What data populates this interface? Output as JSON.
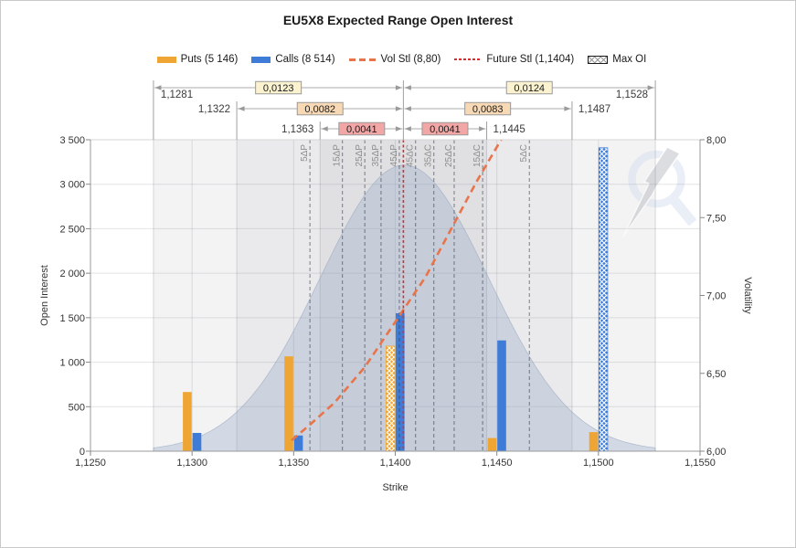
{
  "window": {
    "background": "#ffffff",
    "border_color": "#c9c9c9"
  },
  "header": {
    "title": "EU5X8 Expected Range Open Interest"
  },
  "legend": {
    "items": [
      {
        "swatch": "rect",
        "color": "#EFA533",
        "label": "Puts (5 146)"
      },
      {
        "swatch": "rect",
        "color": "#3E7CD7",
        "label": "Calls (8 514)"
      },
      {
        "swatch": "dash",
        "color": "#E8744B",
        "label": "Vol Stl (8,80)"
      },
      {
        "swatch": "dot",
        "color": "#D32F2F",
        "label": "Future Stl (1,1404)"
      },
      {
        "swatch": "hatch",
        "color": "#9a9a9a",
        "label": "Max OI"
      }
    ]
  },
  "chart_data": {
    "type": "combo",
    "title": "EU5X8 Expected Range Open Interest",
    "xlabel": "Strike",
    "ylabel_left": "Open Interest",
    "ylabel_right": "Volatility",
    "x_range": [
      1.125,
      1.155
    ],
    "y_left_range": [
      0,
      3500
    ],
    "y_right_range": [
      6.0,
      8.0
    ],
    "x_tick_labels": [
      "1,1250",
      "1,1300",
      "1,1350",
      "1,1400",
      "1,1450",
      "1,1500",
      "1,1550"
    ],
    "x_tick_values": [
      1.125,
      1.13,
      1.135,
      1.14,
      1.145,
      1.15,
      1.155
    ],
    "y_left_tick_labels": [
      "0",
      "500",
      "1 000",
      "1 500",
      "2 000",
      "2 500",
      "3 000",
      "3 500"
    ],
    "y_left_tick_values": [
      0,
      500,
      1000,
      1500,
      2000,
      2500,
      3000,
      3500
    ],
    "y_right_tick_labels": [
      "6,00",
      "6,50",
      "7,00",
      "7,50",
      "8,00"
    ],
    "y_right_tick_values": [
      6.0,
      6.5,
      7.0,
      7.5,
      8.0
    ],
    "grid": true,
    "categories": [
      1.13,
      1.135,
      1.14,
      1.145,
      1.15
    ],
    "series": [
      {
        "name": "Puts",
        "type": "bar",
        "color": "#EFA533",
        "values": [
          665,
          1065,
          1180,
          148,
          215
        ],
        "max_oi_strike": 1.14
      },
      {
        "name": "Calls",
        "type": "bar",
        "color": "#3E7CD7",
        "values": [
          205,
          177,
          1550,
          1245,
          3410
        ],
        "max_oi_strike": 1.15
      },
      {
        "name": "Vol Stl",
        "type": "line",
        "style": "dashed",
        "color": "#E8744B",
        "axis": "right",
        "points": [
          [
            1.1349,
            6.07
          ],
          [
            1.1358,
            6.17
          ],
          [
            1.137,
            6.31
          ],
          [
            1.1385,
            6.54
          ],
          [
            1.14,
            6.83
          ],
          [
            1.1415,
            7.12
          ],
          [
            1.1426,
            7.39
          ],
          [
            1.144,
            7.73
          ],
          [
            1.1453,
            8.02
          ]
        ]
      },
      {
        "name": "Future Stl",
        "type": "vline",
        "style": "dotted",
        "color": "#D32F2F",
        "x": 1.1404
      }
    ],
    "bell_curve": {
      "center": 1.14045,
      "sigma": 0.00414,
      "peak": 3215,
      "fill": "rgba(150,170,198,0.35)",
      "edge": "rgba(140,158,186,0.55)"
    },
    "delta_lines": [
      {
        "label": "5ΔP",
        "x": 1.1358
      },
      {
        "label": "15ΔP",
        "x": 1.1374
      },
      {
        "label": "25ΔP",
        "x": 1.1385
      },
      {
        "label": "35ΔP",
        "x": 1.1393
      },
      {
        "label": "45ΔP",
        "x": 1.1402
      },
      {
        "label": "45ΔC",
        "x": 1.141
      },
      {
        "label": "35ΔC",
        "x": 1.1419
      },
      {
        "label": "25ΔC",
        "x": 1.1429
      },
      {
        "label": "15ΔC",
        "x": 1.1443
      },
      {
        "label": "5ΔC",
        "x": 1.1466
      }
    ],
    "expected_ranges": [
      {
        "sigma": 3,
        "left": 1.1281,
        "right": 1.1528,
        "left_label": "1,1281",
        "right_label": "1,1528",
        "left_width_label": "0,0123",
        "right_width_label": "0,0124",
        "box_fill": "#FBF3CF",
        "band_fill": "#f3f3f4"
      },
      {
        "sigma": 2,
        "left": 1.1322,
        "right": 1.1487,
        "left_label": "1,1322",
        "right_label": "1,1487",
        "left_width_label": "0,0082",
        "right_width_label": "0,0083",
        "box_fill": "#F8D9B6",
        "band_fill": "#eaeaec"
      },
      {
        "sigma": 1,
        "left": 1.1363,
        "right": 1.1445,
        "left_label": "1,1363",
        "right_label": "1,1445",
        "left_width_label": "0,0041",
        "right_width_label": "0,0041",
        "box_fill": "#F2A7A6",
        "band_fill": "#e0e0e3"
      }
    ],
    "center_line_x": 1.1404,
    "watermark": "lightning-q-logo"
  }
}
